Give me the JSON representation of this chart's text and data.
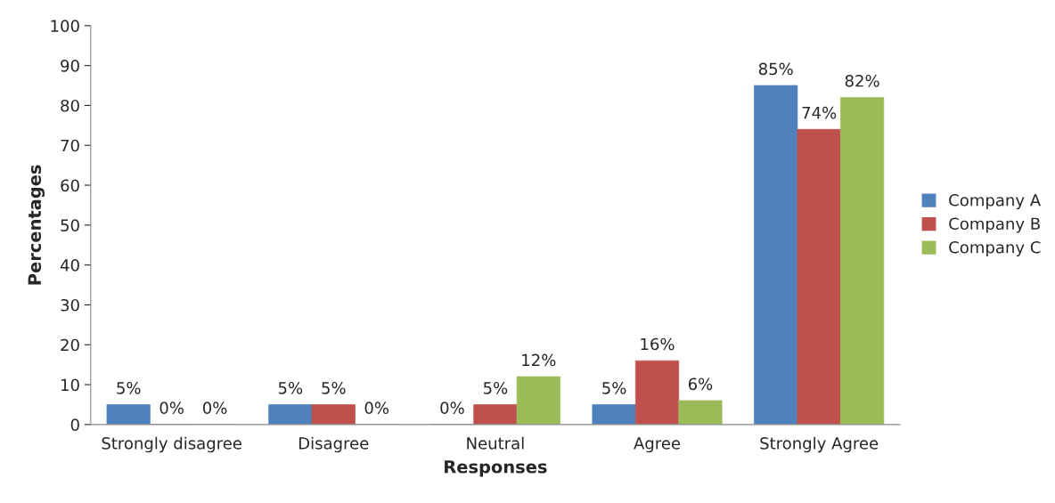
{
  "chart_data": {
    "type": "bar",
    "xlabel": "Responses",
    "ylabel": "Percentages",
    "categories": [
      "Strongly disagree",
      "Disagree",
      "Neutral",
      "Agree",
      "Strongly Agree"
    ],
    "series": [
      {
        "name": "Company A",
        "color": "#4f81bd",
        "values": [
          5,
          5,
          0,
          5,
          85
        ],
        "value_labels": [
          "5%",
          "5%",
          "0%",
          "5%",
          "85%"
        ]
      },
      {
        "name": "Company B",
        "color": "#c0504d",
        "values": [
          0,
          5,
          5,
          16,
          74
        ],
        "value_labels": [
          "0%",
          "5%",
          "5%",
          "16%",
          "74%"
        ]
      },
      {
        "name": "Company C",
        "color": "#9bbb59",
        "values": [
          0,
          0,
          12,
          6,
          82
        ],
        "value_labels": [
          "0%",
          "0%",
          "12%",
          "6%",
          "82%"
        ]
      }
    ],
    "ylim": [
      0,
      100
    ],
    "yticks": [
      0,
      10,
      20,
      30,
      40,
      50,
      60,
      70,
      80,
      90,
      100
    ],
    "grid": false,
    "legend": "right"
  }
}
